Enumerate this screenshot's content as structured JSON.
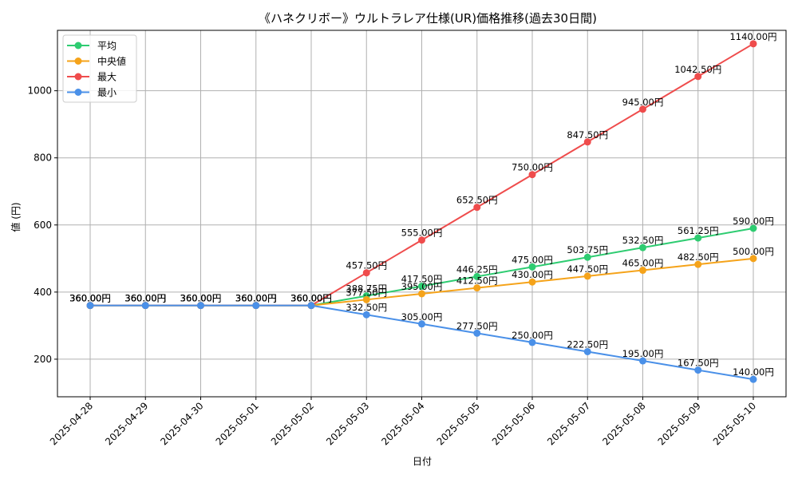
{
  "chart_data": {
    "type": "line",
    "title": "《ハネクリボー》ウルトラレア仕様(UR)価格推移(過去30日間)",
    "xlabel": "日付",
    "ylabel": "値 (円)",
    "ylim": [
      88,
      1180
    ],
    "yticks": [
      200,
      400,
      600,
      800,
      1000
    ],
    "grid": true,
    "legend_position": "top-left",
    "x": [
      "2025-04-28",
      "2025-04-29",
      "2025-04-30",
      "2025-05-01",
      "2025-05-02",
      "2025-05-03",
      "2025-05-04",
      "2025-05-05",
      "2025-05-06",
      "2025-05-07",
      "2025-05-08",
      "2025-05-09",
      "2025-05-10"
    ],
    "series": [
      {
        "name": "平均",
        "color": "#2ecc71",
        "values": [
          360,
          360,
          360,
          360,
          360,
          388.75,
          417.5,
          446.25,
          475,
          503.75,
          532.5,
          561.25,
          590
        ],
        "labels": [
          "360.00円",
          "360.00円",
          "360.00円",
          "360.00円",
          "360.00円",
          "388.75円",
          "417.50円",
          "446.25円",
          "475.00円",
          "503.75円",
          "532.50円",
          "561.25円",
          "590.00円"
        ]
      },
      {
        "name": "中央値",
        "color": "#f5a31a",
        "values": [
          360,
          360,
          360,
          360,
          360,
          377.5,
          395,
          412.5,
          430,
          447.5,
          465,
          482.5,
          500
        ],
        "labels": [
          "360.00円",
          "360.00円",
          "360.00円",
          "360.00円",
          "360.00円",
          "377.50円",
          "395.00円",
          "412.50円",
          "430.00円",
          "447.50円",
          "465.00円",
          "482.50円",
          "500.00円"
        ]
      },
      {
        "name": "最大",
        "color": "#ef4c4c",
        "values": [
          360,
          360,
          360,
          360,
          360,
          457.5,
          555,
          652.5,
          750,
          847.5,
          945,
          1042.5,
          1140
        ],
        "labels": [
          "360.00円",
          "360.00円",
          "360.00円",
          "360.00円",
          "360.00円",
          "457.50円",
          "555.00円",
          "652.50円",
          "750.00円",
          "847.50円",
          "945.00円",
          "1042.50円",
          "1140.00円"
        ]
      },
      {
        "name": "最小",
        "color": "#4a90e8",
        "values": [
          360,
          360,
          360,
          360,
          360,
          332.5,
          305,
          277.5,
          250,
          222.5,
          195,
          167.5,
          140
        ],
        "labels": [
          "360.00円",
          "360.00円",
          "360.00円",
          "360.00円",
          "360.00円",
          "332.50円",
          "305.00円",
          "277.50円",
          "250.00円",
          "222.50円",
          "195.00円",
          "167.50円",
          "140.00円"
        ]
      }
    ]
  }
}
